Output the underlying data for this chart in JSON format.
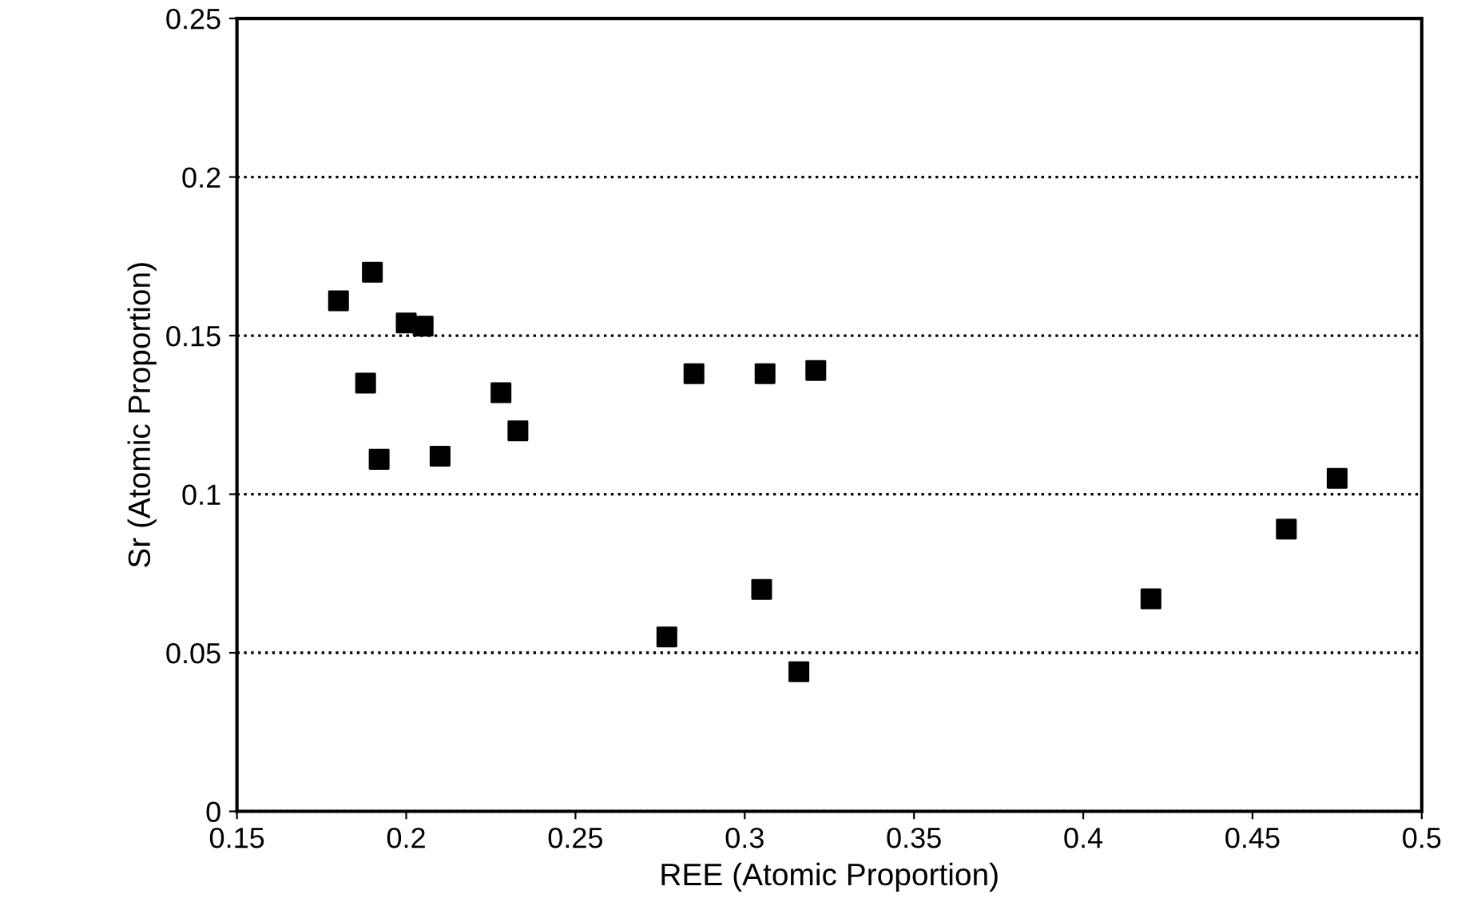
{
  "chart_data": {
    "type": "scatter",
    "xlabel": "REE (Atomic Proportion)",
    "ylabel": "Sr (Atomic Proportion)",
    "x": [
      0.18,
      0.19,
      0.2,
      0.205,
      0.188,
      0.192,
      0.21,
      0.228,
      0.233,
      0.285,
      0.306,
      0.321,
      0.277,
      0.305,
      0.316,
      0.42,
      0.46,
      0.475
    ],
    "series": [
      {
        "color": "#000000",
        "values": [
          0.161,
          0.17,
          0.154,
          0.153,
          0.135,
          0.111,
          0.112,
          0.132,
          0.12,
          0.138,
          0.138,
          0.139,
          0.055,
          0.07,
          0.044,
          0.067,
          0.089,
          0.105
        ]
      }
    ],
    "xlim": [
      0.15,
      0.5
    ],
    "ylim": [
      0,
      0.25
    ],
    "xticks": [
      0.15,
      0.2,
      0.25,
      0.3,
      0.35,
      0.4,
      0.45,
      0.5
    ],
    "yticks": [
      0,
      0.05,
      0.1,
      0.15,
      0.2,
      0.25
    ],
    "grid": "y",
    "marker": "square",
    "line_style": "dotted"
  }
}
